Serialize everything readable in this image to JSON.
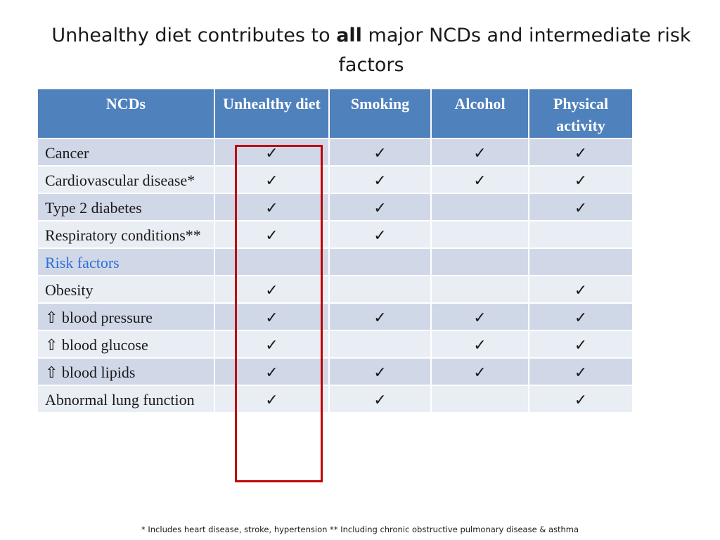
{
  "title": {
    "before": "Unhealthy diet contributes to ",
    "bold": "all",
    "after": " major NCDs and intermediate risk factors"
  },
  "table": {
    "headers": [
      "NCDs",
      "Unhealthy diet",
      "Smoking",
      "Alcohol",
      "Physical activity"
    ],
    "check_symbol": "✓",
    "rows": [
      {
        "label": "Cancer",
        "cells": [
          "✓",
          "✓",
          "✓",
          "✓"
        ]
      },
      {
        "label": "Cardiovascular disease*",
        "cells": [
          "✓",
          "✓",
          "✓",
          "✓"
        ]
      },
      {
        "label": "Type 2 diabetes",
        "cells": [
          "✓",
          "✓",
          "",
          "✓"
        ]
      },
      {
        "label": "Respiratory conditions**",
        "cells": [
          "✓",
          "✓",
          "",
          ""
        ]
      },
      {
        "label": "Risk factors",
        "cells": [
          "",
          "",
          "",
          ""
        ]
      },
      {
        "label": "Obesity",
        "cells": [
          "✓",
          "",
          "",
          "✓"
        ]
      },
      {
        "label": "⇧ blood pressure",
        "cells": [
          "✓",
          "✓",
          "✓",
          "✓"
        ]
      },
      {
        "label": "⇧ blood glucose",
        "cells": [
          "✓",
          "",
          "✓",
          "✓"
        ]
      },
      {
        "label": "⇧ blood lipids",
        "cells": [
          "✓",
          "✓",
          "✓",
          "✓"
        ]
      },
      {
        "label": "Abnormal lung function",
        "cells": [
          "✓",
          "✓",
          "",
          "✓"
        ]
      }
    ]
  },
  "footnote": "* Includes heart disease, stroke, hypertension ** Including chronic obstructive pulmonary disease & asthma",
  "colors": {
    "header_bg": "#4f81bd",
    "band_bg": "#d0d8e8",
    "plain_bg": "#e9edf4",
    "section_label": "#2f6fd6",
    "highlight_border": "#c00000"
  }
}
